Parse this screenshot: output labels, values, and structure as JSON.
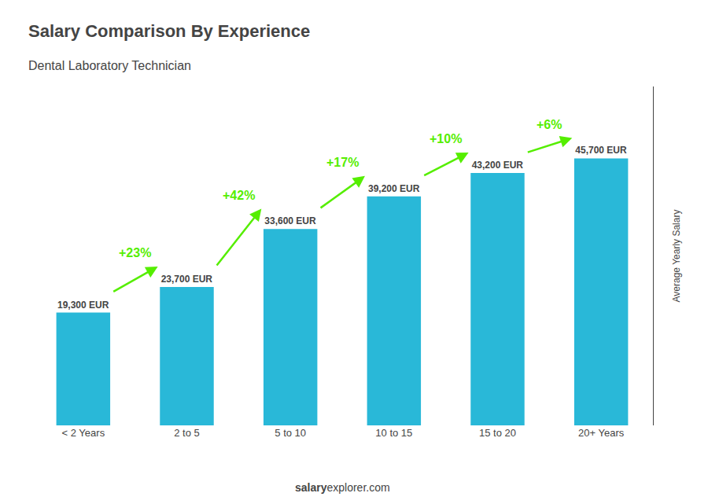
{
  "chart_data": {
    "type": "bar",
    "title": "Salary Comparison By Experience",
    "subtitle": "Dental Laboratory Technician",
    "categories": [
      "< 2 Years",
      "2 to 5",
      "5 to 10",
      "10 to 15",
      "15 to 20",
      "20+ Years"
    ],
    "values": [
      19300,
      23700,
      33600,
      39200,
      43200,
      45700
    ],
    "value_labels": [
      "19,300 EUR",
      "23,700 EUR",
      "33,600 EUR",
      "39,200 EUR",
      "43,200 EUR",
      "45,700 EUR"
    ],
    "data_labels": true,
    "color": "#29b8d8",
    "ylabel": "Average Yearly Salary",
    "ylim": [
      0,
      58000
    ],
    "grid": false,
    "tick_labels": "x",
    "annotations": [
      {
        "text": "+23%",
        "color": "#55ee00"
      },
      {
        "text": "+42%",
        "color": "#55ee00"
      },
      {
        "text": "+17%",
        "color": "#55ee00"
      },
      {
        "text": "+10%",
        "color": "#55ee00"
      },
      {
        "text": "+6%",
        "color": "#55ee00"
      }
    ],
    "footer": [
      "salary",
      "explorer.com"
    ]
  }
}
